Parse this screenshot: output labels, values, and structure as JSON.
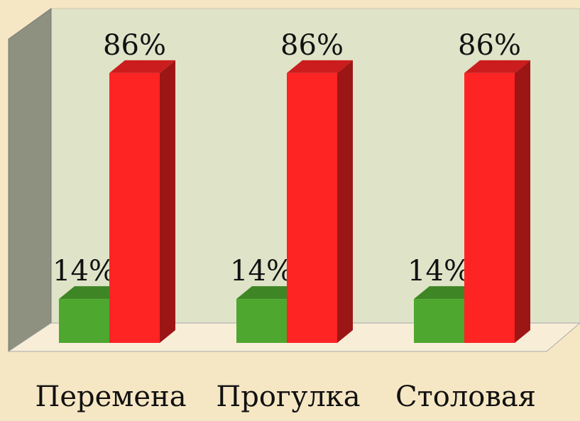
{
  "chart_data": {
    "type": "bar3d",
    "categories": [
      "Перемена",
      "Прогулка",
      "Столовая"
    ],
    "series": [
      {
        "color": "#4ea72e",
        "values": [
          14,
          14,
          14
        ],
        "value_labels": [
          "14%",
          "14%",
          "14%"
        ]
      },
      {
        "color": "#fe2424",
        "values": [
          86,
          86,
          86
        ],
        "value_labels": [
          "86%",
          "86%",
          "86%"
        ]
      }
    ],
    "ylim": [
      0,
      100
    ]
  }
}
